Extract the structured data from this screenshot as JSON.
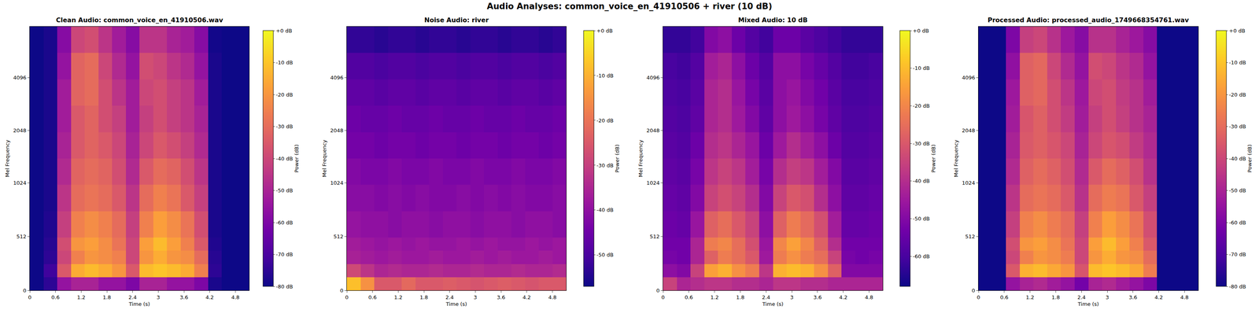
{
  "title": "Audio Analyses: common_voice_en_41910506 + river (10 dB)",
  "chart_data": [
    {
      "type": "heatmap",
      "title": "Clean Audio: common_voice_en_41910506.wav",
      "x_label": "Time (s)",
      "y_label": "Mel Frequency",
      "xlim": [
        0,
        5.12
      ],
      "xticks": [
        0,
        0.6,
        1.2,
        1.8,
        2.4,
        3,
        3.6,
        4.2,
        4.8
      ],
      "ylim": [
        0,
        8000
      ],
      "yticks": [
        0,
        512,
        1024,
        2048,
        4096
      ],
      "time_bins": [
        0,
        0.32,
        0.64,
        0.96,
        1.28,
        1.6,
        1.92,
        2.24,
        2.56,
        2.88,
        3.2,
        3.52,
        3.84,
        4.16,
        4.48,
        4.8,
        5.12
      ],
      "frequency_bins": [
        0,
        125,
        250,
        375,
        500,
        750,
        1000,
        1414,
        2000,
        2828,
        4000,
        5657,
        8000
      ],
      "cells": [
        [
          -80,
          -75,
          -55,
          -50,
          -50,
          -55,
          -55,
          -60,
          -50,
          -50,
          -55,
          -55,
          -60,
          -78,
          -80,
          -80
        ],
        [
          -80,
          -72,
          -35,
          -15,
          -12,
          -15,
          -20,
          -35,
          -12,
          -10,
          -12,
          -15,
          -25,
          -75,
          -80,
          -80
        ],
        [
          -80,
          -75,
          -40,
          -25,
          -20,
          -22,
          -25,
          -40,
          -20,
          -15,
          -20,
          -22,
          -30,
          -76,
          -80,
          -80
        ],
        [
          -80,
          -76,
          -38,
          -20,
          -18,
          -22,
          -28,
          -40,
          -18,
          -12,
          -18,
          -25,
          -35,
          -77,
          -80,
          -80
        ],
        [
          -80,
          -77,
          -42,
          -25,
          -22,
          -25,
          -30,
          -42,
          -25,
          -18,
          -22,
          -28,
          -38,
          -78,
          -80,
          -80
        ],
        [
          -80,
          -78,
          -45,
          -30,
          -28,
          -30,
          -35,
          -45,
          -30,
          -25,
          -28,
          -35,
          -42,
          -78,
          -80,
          -80
        ],
        [
          -80,
          -78,
          -48,
          -32,
          -30,
          -32,
          -38,
          -48,
          -35,
          -30,
          -32,
          -38,
          -45,
          -78,
          -80,
          -80
        ],
        [
          -80,
          -78,
          -50,
          -35,
          -32,
          -35,
          -40,
          -50,
          -40,
          -35,
          -38,
          -42,
          -48,
          -78,
          -80,
          -80
        ],
        [
          -80,
          -78,
          -52,
          -35,
          -32,
          -38,
          -42,
          -52,
          -42,
          -38,
          -42,
          -45,
          -50,
          -78,
          -80,
          -80
        ],
        [
          -80,
          -78,
          -52,
          -32,
          -30,
          -38,
          -45,
          -52,
          -40,
          -38,
          -42,
          -45,
          -52,
          -78,
          -80,
          -80
        ],
        [
          -80,
          -78,
          -55,
          -32,
          -30,
          -40,
          -48,
          -55,
          -38,
          -40,
          -45,
          -48,
          -55,
          -78,
          -80,
          -80
        ],
        [
          -80,
          -78,
          -58,
          -40,
          -38,
          -45,
          -52,
          -58,
          -45,
          -45,
          -50,
          -52,
          -58,
          -79,
          -80,
          -80
        ]
      ],
      "colorbar": {
        "title": "Power (dB)",
        "range": [
          -80,
          0
        ],
        "ticks": [
          {
            "value": 0,
            "label": "+0 dB"
          },
          {
            "value": -10,
            "label": "-10 dB"
          },
          {
            "value": -20,
            "label": "-20 dB"
          },
          {
            "value": -30,
            "label": "-30 dB"
          },
          {
            "value": -40,
            "label": "-40 dB"
          },
          {
            "value": -50,
            "label": "-50 dB"
          },
          {
            "value": -60,
            "label": "-60 dB"
          },
          {
            "value": -70,
            "label": "-70 dB"
          },
          {
            "value": -80,
            "label": "-80 dB"
          }
        ]
      }
    },
    {
      "type": "heatmap",
      "title": "Noise Audio: river",
      "x_label": "Time (s)",
      "y_label": "Mel Frequency",
      "xlim": [
        0,
        5.12
      ],
      "xticks": [
        0,
        0.6,
        1.2,
        1.8,
        2.4,
        3,
        3.6,
        4.2,
        4.8
      ],
      "ylim": [
        0,
        8000
      ],
      "yticks": [
        0,
        512,
        1024,
        2048,
        4096
      ],
      "time_bins": [
        0,
        0.32,
        0.64,
        0.96,
        1.28,
        1.6,
        1.92,
        2.24,
        2.56,
        2.88,
        3.2,
        3.52,
        3.84,
        4.16,
        4.48,
        4.8,
        5.12
      ],
      "frequency_bins": [
        0,
        125,
        250,
        375,
        500,
        750,
        1000,
        1414,
        2000,
        2828,
        4000,
        5657,
        8000
      ],
      "cells": [
        [
          -8,
          -15,
          -25,
          -25,
          -22,
          -25,
          -25,
          -24,
          -25,
          -26,
          -25,
          -24,
          -25,
          -26,
          -25,
          -25
        ],
        [
          -28,
          -32,
          -35,
          -34,
          -35,
          -35,
          -34,
          -35,
          -35,
          -34,
          -35,
          -35,
          -34,
          -35,
          -35,
          -34
        ],
        [
          -36,
          -37,
          -38,
          -37,
          -38,
          -38,
          -37,
          -38,
          -38,
          -37,
          -38,
          -37,
          -38,
          -38,
          -37,
          -38
        ],
        [
          -37,
          -38,
          -39,
          -38,
          -39,
          -38,
          -39,
          -39,
          -38,
          -39,
          -38,
          -39,
          -39,
          -38,
          -39,
          -38
        ],
        [
          -39,
          -40,
          -40,
          -41,
          -40,
          -40,
          -41,
          -40,
          -40,
          -41,
          -40,
          -40,
          -41,
          -40,
          -40,
          -41
        ],
        [
          -41,
          -41,
          -42,
          -41,
          -42,
          -41,
          -42,
          -42,
          -41,
          -42,
          -41,
          -42,
          -41,
          -42,
          -42,
          -41
        ],
        [
          -42,
          -43,
          -43,
          -42,
          -43,
          -43,
          -42,
          -43,
          -43,
          -42,
          -43,
          -43,
          -42,
          -43,
          -43,
          -42
        ],
        [
          -44,
          -44,
          -45,
          -44,
          -44,
          -45,
          -44,
          -44,
          -45,
          -44,
          -44,
          -45,
          -44,
          -44,
          -45,
          -44
        ],
        [
          -45,
          -46,
          -46,
          -45,
          -46,
          -46,
          -45,
          -46,
          -46,
          -45,
          -46,
          -46,
          -45,
          -46,
          -46,
          -45
        ],
        [
          -47,
          -47,
          -48,
          -47,
          -47,
          -48,
          -47,
          -47,
          -48,
          -47,
          -47,
          -48,
          -47,
          -47,
          -48,
          -47
        ],
        [
          -49,
          -49,
          -50,
          -49,
          -49,
          -50,
          -49,
          -49,
          -50,
          -49,
          -49,
          -50,
          -49,
          -49,
          -50,
          -49
        ],
        [
          -53,
          -53,
          -54,
          -53,
          -53,
          -54,
          -53,
          -53,
          -54,
          -53,
          -53,
          -54,
          -53,
          -53,
          -54,
          -53
        ]
      ],
      "colorbar": {
        "title": "Power (dB)",
        "range": [
          -57,
          0
        ],
        "ticks": [
          {
            "value": 0,
            "label": "+0 dB"
          },
          {
            "value": -10,
            "label": "-10 dB"
          },
          {
            "value": -20,
            "label": "-20 dB"
          },
          {
            "value": -30,
            "label": "-30 dB"
          },
          {
            "value": -40,
            "label": "-40 dB"
          },
          {
            "value": -50,
            "label": "-50 dB"
          }
        ]
      }
    },
    {
      "type": "heatmap",
      "title": "Mixed Audio: 10 dB",
      "x_label": "Time (s)",
      "y_label": "Mel Frequency",
      "xlim": [
        0,
        5.12
      ],
      "xticks": [
        0,
        0.6,
        1.2,
        1.8,
        2.4,
        3,
        3.6,
        4.2,
        4.8
      ],
      "ylim": [
        0,
        8000
      ],
      "yticks": [
        0,
        512,
        1024,
        2048,
        4096
      ],
      "time_bins": [
        0,
        0.32,
        0.64,
        0.96,
        1.28,
        1.6,
        1.92,
        2.24,
        2.56,
        2.88,
        3.2,
        3.52,
        3.84,
        4.16,
        4.48,
        4.8,
        5.12
      ],
      "frequency_bins": [
        0,
        125,
        250,
        375,
        500,
        750,
        1000,
        1414,
        2000,
        2828,
        4000,
        5657,
        8000
      ],
      "cells": [
        [
          -35,
          -42,
          -40,
          -38,
          -38,
          -40,
          -40,
          -42,
          -38,
          -38,
          -40,
          -40,
          -42,
          -42,
          -42,
          -42
        ],
        [
          -48,
          -50,
          -35,
          -15,
          -12,
          -18,
          -22,
          -38,
          -12,
          -10,
          -12,
          -18,
          -28,
          -50,
          -50,
          -50
        ],
        [
          -52,
          -53,
          -42,
          -28,
          -22,
          -25,
          -30,
          -45,
          -22,
          -18,
          -22,
          -25,
          -35,
          -52,
          -53,
          -52
        ],
        [
          -53,
          -53,
          -42,
          -22,
          -20,
          -25,
          -32,
          -46,
          -20,
          -15,
          -20,
          -28,
          -40,
          -53,
          -53,
          -53
        ],
        [
          -54,
          -55,
          -46,
          -28,
          -25,
          -30,
          -35,
          -48,
          -28,
          -22,
          -26,
          -32,
          -44,
          -55,
          -55,
          -54
        ],
        [
          -55,
          -56,
          -50,
          -35,
          -32,
          -35,
          -40,
          -50,
          -35,
          -30,
          -32,
          -40,
          -48,
          -56,
          -56,
          -55
        ],
        [
          -56,
          -57,
          -52,
          -38,
          -35,
          -38,
          -44,
          -52,
          -40,
          -36,
          -38,
          -44,
          -50,
          -57,
          -57,
          -56
        ],
        [
          -57,
          -58,
          -54,
          -40,
          -38,
          -42,
          -46,
          -54,
          -45,
          -40,
          -44,
          -48,
          -54,
          -58,
          -58,
          -57
        ],
        [
          -58,
          -59,
          -56,
          -42,
          -40,
          -45,
          -50,
          -56,
          -48,
          -45,
          -48,
          -52,
          -56,
          -59,
          -59,
          -58
        ],
        [
          -59,
          -60,
          -57,
          -42,
          -40,
          -46,
          -52,
          -57,
          -48,
          -46,
          -50,
          -53,
          -57,
          -60,
          -60,
          -59
        ],
        [
          -60,
          -61,
          -58,
          -44,
          -42,
          -48,
          -54,
          -58,
          -48,
          -48,
          -52,
          -55,
          -58,
          -61,
          -61,
          -60
        ],
        [
          -63,
          -63,
          -61,
          -50,
          -48,
          -54,
          -58,
          -61,
          -54,
          -54,
          -57,
          -59,
          -61,
          -63,
          -63,
          -63
        ]
      ],
      "colorbar": {
        "title": "Power (dB)",
        "range": [
          -68,
          0
        ],
        "ticks": [
          {
            "value": 0,
            "label": "+0 dB"
          },
          {
            "value": -10,
            "label": "-10 dB"
          },
          {
            "value": -20,
            "label": "-20 dB"
          },
          {
            "value": -30,
            "label": "-30 dB"
          },
          {
            "value": -40,
            "label": "-40 dB"
          },
          {
            "value": -50,
            "label": "-50 dB"
          },
          {
            "value": -60,
            "label": "-60 dB"
          }
        ]
      }
    },
    {
      "type": "heatmap",
      "title": "Processed Audio: processed_audio_1749668354761.wav",
      "x_label": "Time (s)",
      "y_label": "Mel Frequency",
      "xlim": [
        0,
        5.12
      ],
      "xticks": [
        0,
        0.6,
        1.2,
        1.8,
        2.4,
        3,
        3.6,
        4.2,
        4.8
      ],
      "ylim": [
        0,
        8000
      ],
      "yticks": [
        0,
        512,
        1024,
        2048,
        4096
      ],
      "time_bins": [
        0,
        0.32,
        0.64,
        0.96,
        1.28,
        1.6,
        1.92,
        2.24,
        2.56,
        2.88,
        3.2,
        3.52,
        3.84,
        4.16,
        4.48,
        4.8,
        5.12
      ],
      "frequency_bins": [
        0,
        125,
        250,
        375,
        500,
        750,
        1000,
        1414,
        2000,
        2828,
        4000,
        5657,
        8000
      ],
      "cells": [
        [
          -80,
          -80,
          -55,
          -50,
          -48,
          -52,
          -55,
          -62,
          -50,
          -48,
          -52,
          -55,
          -60,
          -80,
          -80,
          -80
        ],
        [
          -80,
          -80,
          -35,
          -14,
          -12,
          -16,
          -20,
          -36,
          -12,
          -10,
          -12,
          -16,
          -26,
          -80,
          -80,
          -80
        ],
        [
          -80,
          -80,
          -40,
          -25,
          -20,
          -22,
          -26,
          -40,
          -20,
          -15,
          -20,
          -22,
          -30,
          -80,
          -80,
          -80
        ],
        [
          -80,
          -80,
          -38,
          -20,
          -18,
          -22,
          -28,
          -40,
          -18,
          -12,
          -18,
          -25,
          -35,
          -80,
          -80,
          -80
        ],
        [
          -80,
          -80,
          -42,
          -25,
          -22,
          -26,
          -30,
          -42,
          -25,
          -18,
          -22,
          -28,
          -38,
          -80,
          -80,
          -80
        ],
        [
          -80,
          -80,
          -45,
          -30,
          -28,
          -30,
          -35,
          -46,
          -30,
          -26,
          -28,
          -35,
          -42,
          -80,
          -80,
          -80
        ],
        [
          -80,
          -80,
          -48,
          -33,
          -30,
          -33,
          -38,
          -48,
          -35,
          -30,
          -33,
          -38,
          -46,
          -80,
          -80,
          -80
        ],
        [
          -80,
          -80,
          -50,
          -35,
          -33,
          -36,
          -40,
          -50,
          -40,
          -36,
          -38,
          -43,
          -48,
          -80,
          -80,
          -80
        ],
        [
          -80,
          -80,
          -52,
          -36,
          -33,
          -38,
          -43,
          -52,
          -42,
          -38,
          -42,
          -46,
          -50,
          -80,
          -80,
          -80
        ],
        [
          -80,
          -80,
          -53,
          -33,
          -31,
          -38,
          -45,
          -53,
          -40,
          -38,
          -43,
          -46,
          -52,
          -80,
          -80,
          -80
        ],
        [
          -80,
          -80,
          -56,
          -33,
          -31,
          -40,
          -48,
          -55,
          -38,
          -40,
          -45,
          -48,
          -55,
          -80,
          -80,
          -80
        ],
        [
          -80,
          -80,
          -60,
          -42,
          -40,
          -46,
          -53,
          -58,
          -46,
          -46,
          -50,
          -53,
          -58,
          -80,
          -80,
          -80
        ]
      ],
      "colorbar": {
        "title": "Power (dB)",
        "range": [
          -80,
          0
        ],
        "ticks": [
          {
            "value": 0,
            "label": "+0 dB"
          },
          {
            "value": -10,
            "label": "-10 dB"
          },
          {
            "value": -20,
            "label": "-20 dB"
          },
          {
            "value": -30,
            "label": "-30 dB"
          },
          {
            "value": -40,
            "label": "-40 dB"
          },
          {
            "value": -50,
            "label": "-50 dB"
          },
          {
            "value": -60,
            "label": "-60 dB"
          },
          {
            "value": -70,
            "label": "-70 dB"
          },
          {
            "value": -80,
            "label": "-80 dB"
          }
        ]
      }
    }
  ]
}
